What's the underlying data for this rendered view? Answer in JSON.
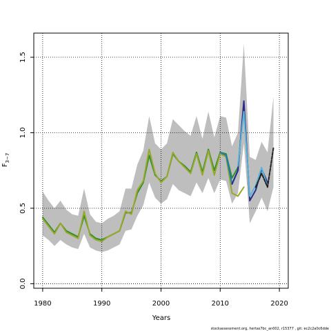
{
  "chart_data": {
    "type": "line",
    "xlabel": "Years",
    "ylabel": "F",
    "ylabel_subscript": "3−7",
    "xlim": [
      1978.5,
      2021.5
    ],
    "ylim": [
      -0.03,
      1.66
    ],
    "x_ticks": [
      1980,
      1990,
      2000,
      2010,
      2020
    ],
    "y_ticks": [
      0.0,
      0.5,
      1.0,
      1.5
    ],
    "y_tick_labels": [
      "0.0",
      "0.5",
      "1.0",
      "1.5"
    ],
    "grid": true,
    "ribbon": {
      "color": "#bebebe",
      "x": [
        1980,
        1981,
        1982,
        1983,
        1984,
        1985,
        1986,
        1987,
        1988,
        1989,
        1990,
        1991,
        1992,
        1993,
        1994,
        1995,
        1996,
        1997,
        1998,
        1999,
        2000,
        2001,
        2002,
        2003,
        2004,
        2005,
        2006,
        2007,
        2008,
        2009,
        2010,
        2011,
        2012,
        2013,
        2014,
        2015,
        2016,
        2017,
        2018,
        2019
      ],
      "upper": [
        0.61,
        0.55,
        0.5,
        0.55,
        0.49,
        0.46,
        0.45,
        0.63,
        0.46,
        0.41,
        0.4,
        0.43,
        0.45,
        0.48,
        0.63,
        0.63,
        0.79,
        0.88,
        1.11,
        0.93,
        0.89,
        0.93,
        1.09,
        1.05,
        1.01,
        0.98,
        1.11,
        0.96,
        1.14,
        0.97,
        1.11,
        1.1,
        0.91,
        1.0,
        1.59,
        0.84,
        0.82,
        0.94,
        0.87,
        1.24
      ],
      "lower": [
        0.32,
        0.29,
        0.25,
        0.29,
        0.26,
        0.24,
        0.23,
        0.33,
        0.24,
        0.22,
        0.21,
        0.22,
        0.24,
        0.26,
        0.35,
        0.36,
        0.45,
        0.52,
        0.67,
        0.57,
        0.53,
        0.56,
        0.66,
        0.62,
        0.6,
        0.58,
        0.67,
        0.6,
        0.7,
        0.6,
        0.69,
        0.68,
        0.53,
        0.6,
        0.93,
        0.4,
        0.48,
        0.57,
        0.48,
        0.64
      ]
    },
    "series": [
      {
        "color": "#2f8f2f",
        "x": [
          1980,
          1981,
          1982,
          1983,
          1984,
          1985,
          1986,
          1987,
          1988,
          1989,
          1990,
          1991,
          1992,
          1993,
          1994,
          1995,
          1996,
          1997,
          1998,
          1999,
          2000,
          2001,
          2002,
          2003,
          2004,
          2005,
          2006,
          2007,
          2008,
          2009,
          2010,
          2011,
          2012,
          2013,
          2014
        ],
        "values": [
          0.44,
          0.39,
          0.34,
          0.4,
          0.35,
          0.33,
          0.31,
          0.45,
          0.33,
          0.3,
          0.29,
          0.31,
          0.33,
          0.35,
          0.47,
          0.47,
          0.6,
          0.67,
          0.85,
          0.72,
          0.68,
          0.71,
          0.86,
          0.81,
          0.78,
          0.74,
          0.87,
          0.74,
          0.89,
          0.75,
          0.87,
          0.86,
          0.7,
          0.77,
          1.18
        ]
      },
      {
        "color": "#9aa82a",
        "x": [
          1980,
          1981,
          1982,
          1983,
          1984,
          1985,
          1986,
          1987,
          1988,
          1989,
          1990,
          1991,
          1992,
          1993,
          1994,
          1995,
          1996,
          1997,
          1998,
          1999,
          2000,
          2001,
          2002,
          2003,
          2004,
          2005,
          2006,
          2007,
          2008,
          2009,
          2010,
          2011,
          2012,
          2013,
          2014
        ],
        "values": [
          0.43,
          0.38,
          0.33,
          0.4,
          0.34,
          0.32,
          0.3,
          0.48,
          0.32,
          0.29,
          0.28,
          0.31,
          0.33,
          0.35,
          0.48,
          0.46,
          0.62,
          0.68,
          0.89,
          0.73,
          0.67,
          0.71,
          0.87,
          0.81,
          0.77,
          0.73,
          0.86,
          0.72,
          0.88,
          0.72,
          0.86,
          0.84,
          0.6,
          0.58,
          0.64
        ]
      },
      {
        "color": "#1e7ab8",
        "x": [
          2010,
          2011,
          2012,
          2013,
          2014,
          2015
        ],
        "values": [
          0.87,
          0.85,
          0.66,
          0.75,
          1.19,
          0.56
        ]
      },
      {
        "color": "#2a2a8a",
        "x": [
          2012,
          2013,
          2014,
          2015,
          2016,
          2017,
          2018
        ],
        "values": [
          0.66,
          0.75,
          1.21,
          0.55,
          0.62,
          0.76,
          0.67
        ]
      },
      {
        "color": "#5ab4d8",
        "x": [
          2013,
          2014,
          2015,
          2016,
          2017,
          2018
        ],
        "values": [
          0.78,
          1.14,
          0.58,
          0.65,
          0.77,
          0.64
        ]
      },
      {
        "color": "#222222",
        "dashed": true,
        "x": [
          2016,
          2017,
          2018,
          2019
        ],
        "values": [
          0.64,
          0.73,
          0.64,
          0.9
        ]
      }
    ]
  },
  "footer_text": "stockassessment.org, hertas7bc_an002, r15377 , git: ec2c2a0c6dde"
}
